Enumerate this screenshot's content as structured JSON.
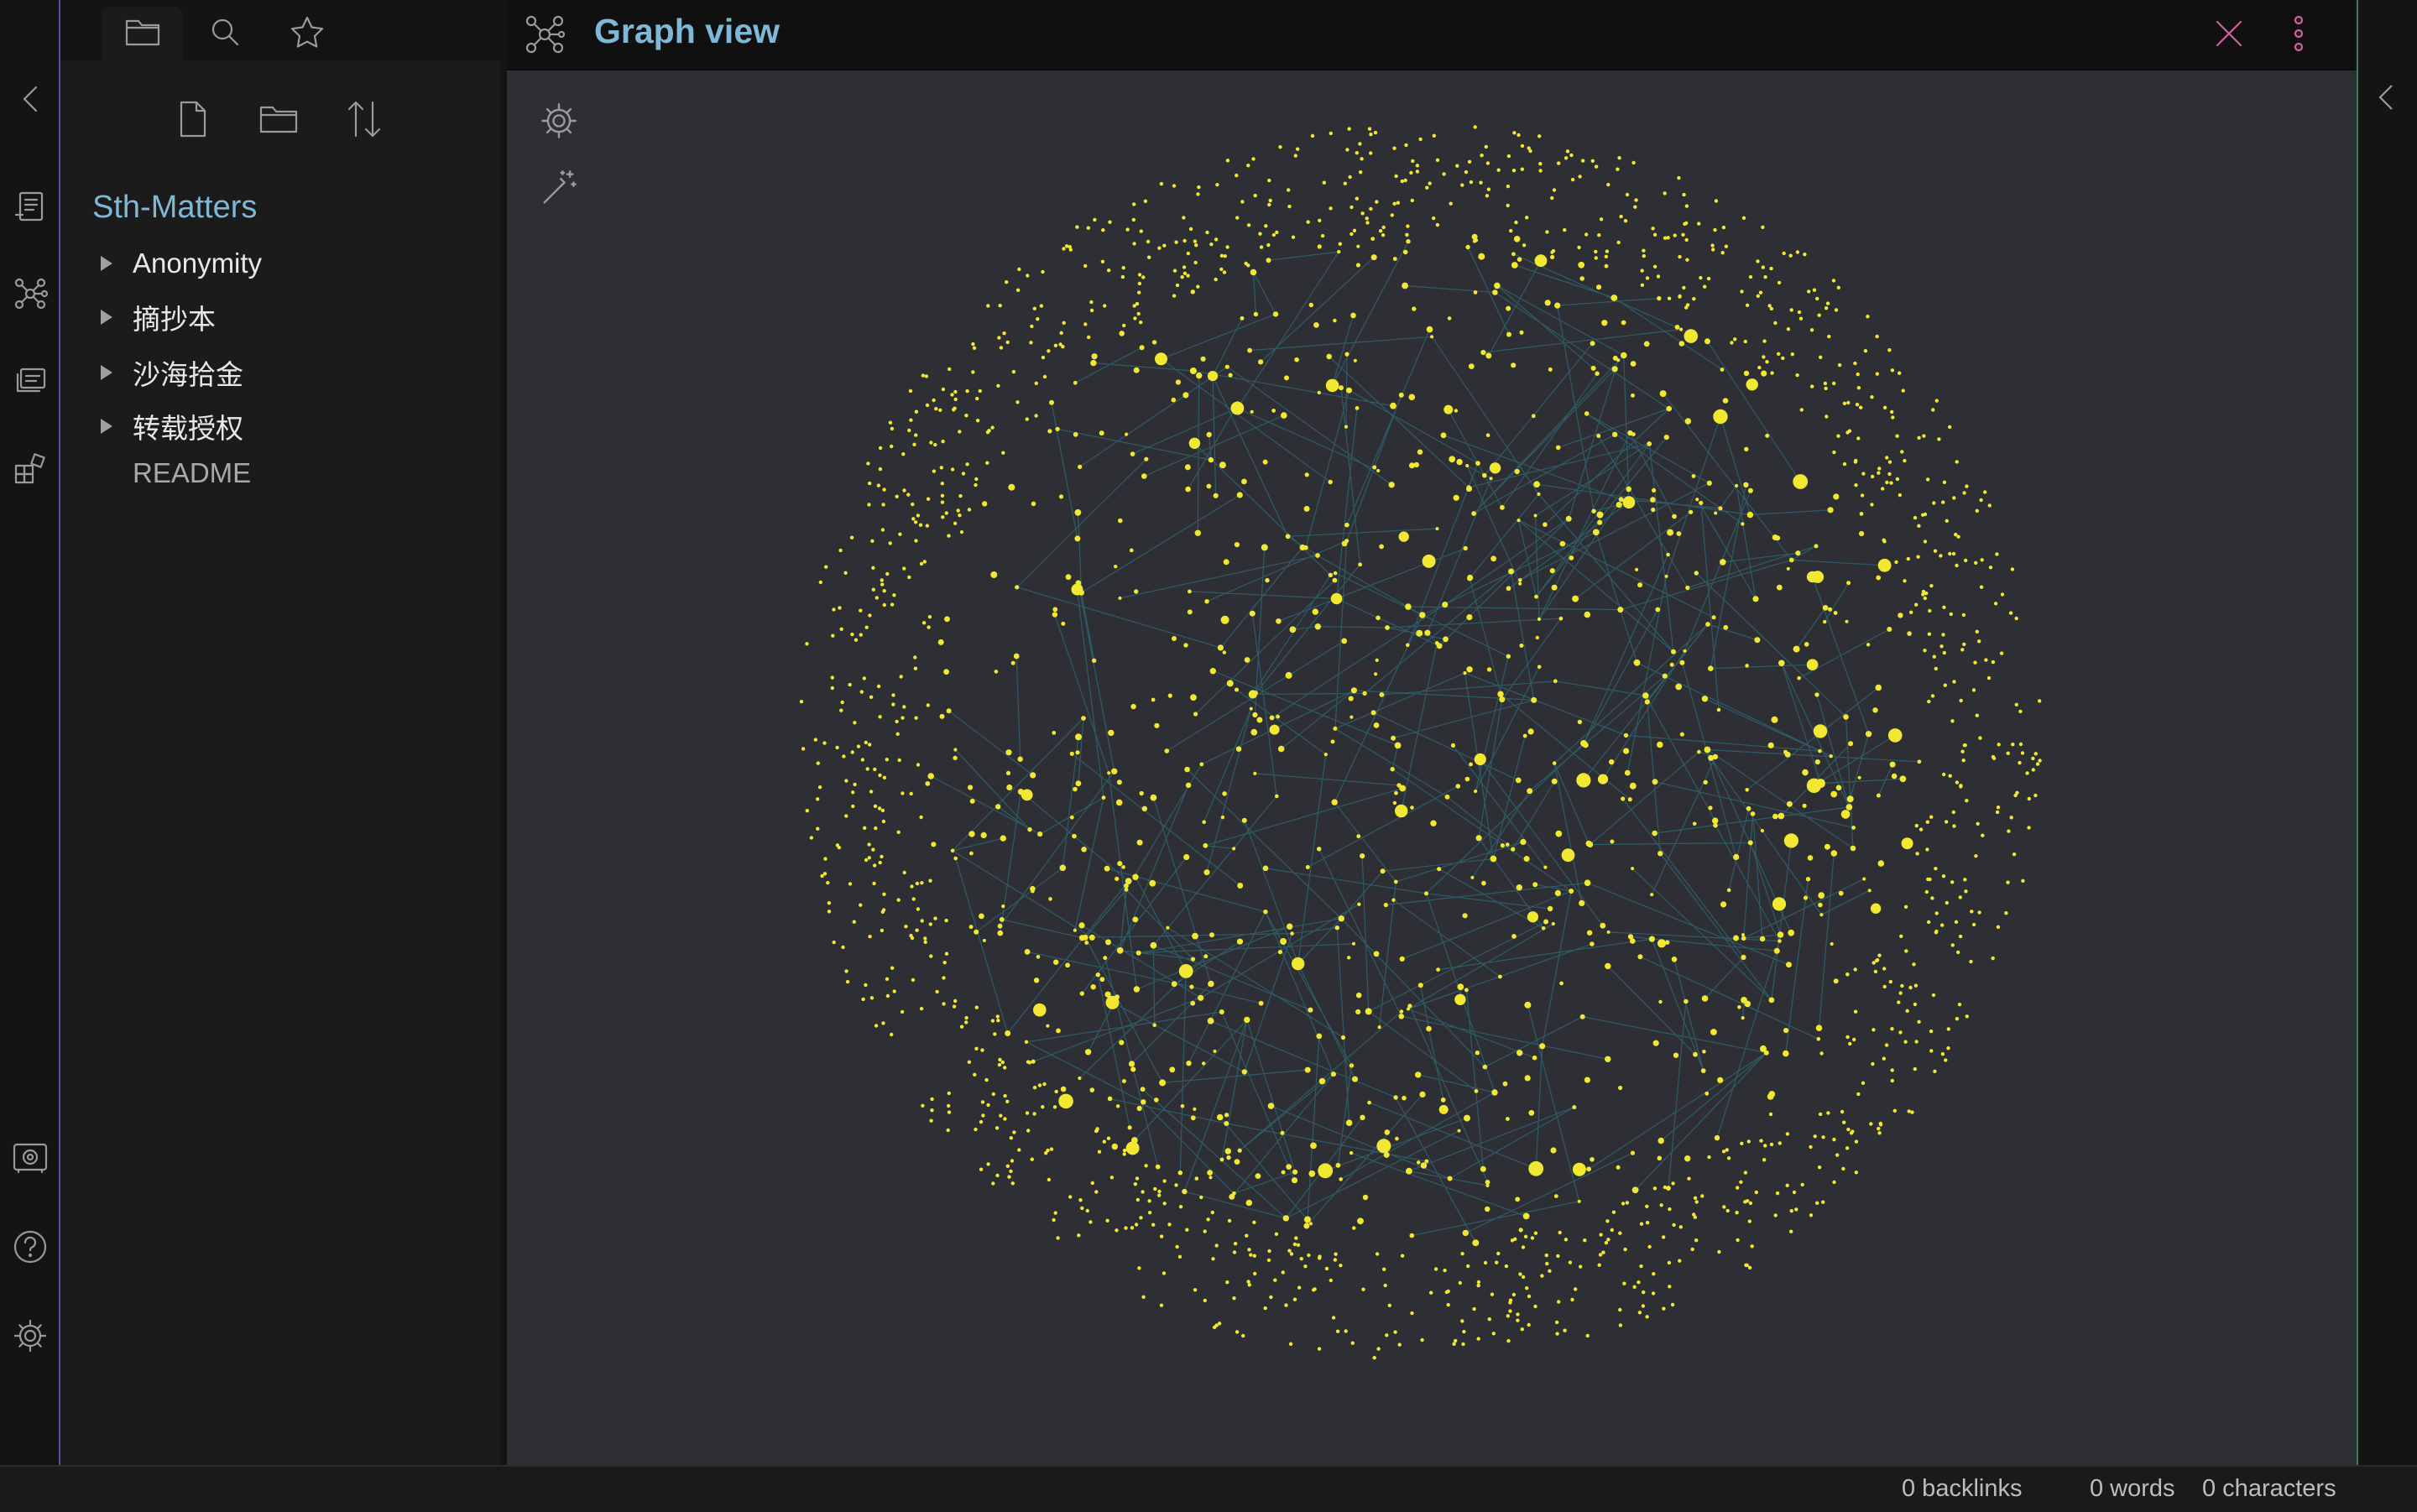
{
  "pane": {
    "title": "Graph view",
    "tab_icon": "graph-icon"
  },
  "sidebar": {
    "tabs": [
      "folder-icon",
      "search-icon",
      "star-icon"
    ],
    "actions": [
      "new-note-icon",
      "new-folder-icon",
      "sort-icon"
    ],
    "vault_name": "Sth-Matters",
    "items": [
      {
        "label": "Anonymity",
        "type": "folder"
      },
      {
        "label": "摘抄本",
        "type": "folder"
      },
      {
        "label": "沙海拾金",
        "type": "folder"
      },
      {
        "label": "转载授权",
        "type": "folder"
      },
      {
        "label": "README",
        "type": "file"
      }
    ]
  },
  "status": {
    "backlinks": "0 backlinks",
    "words": "0 words",
    "characters": "0 characters"
  },
  "colors": {
    "accent": "#7fb7d6",
    "node": "#f2e832",
    "link": "#2f7f8f",
    "close": "#d45fa3"
  }
}
